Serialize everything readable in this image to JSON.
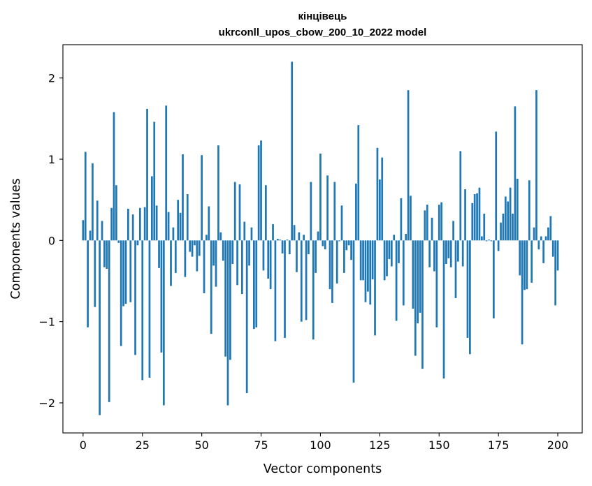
{
  "chart_data": {
    "type": "bar",
    "title": "кінцівець",
    "subtitle": "ukrconll_upos_cbow_200_10_2022 model",
    "xlabel": "Vector components",
    "ylabel": "Components values",
    "xlim": [
      -8.5,
      210.3
    ],
    "ylim": [
      -2.37,
      2.41
    ],
    "xticks": [
      0,
      25,
      50,
      75,
      100,
      125,
      150,
      175,
      200
    ],
    "yticks": [
      -2,
      -1,
      0,
      1,
      2
    ],
    "ytick_labels": [
      "−2",
      "−1",
      "0",
      "1",
      "2"
    ],
    "bar_color": "#1f77b4",
    "grid": false,
    "values": [
      0.25,
      1.09,
      -1.07,
      0.12,
      0.95,
      -0.82,
      0.49,
      -2.15,
      0.24,
      -0.33,
      -0.35,
      -1.99,
      0.4,
      1.58,
      0.68,
      -0.03,
      -1.3,
      -0.81,
      -0.78,
      0.39,
      -0.76,
      0.32,
      -1.41,
      -0.06,
      0.4,
      -1.72,
      0.41,
      1.62,
      -1.69,
      0.79,
      1.46,
      0.43,
      -0.34,
      -1.38,
      -2.03,
      1.66,
      0.35,
      -0.56,
      0.16,
      -0.4,
      0.5,
      0.34,
      1.06,
      -0.45,
      0.57,
      -0.14,
      -0.2,
      -0.06,
      -0.38,
      -0.19,
      1.05,
      -0.65,
      0.07,
      0.42,
      -1.15,
      -0.31,
      -0.57,
      1.17,
      0.1,
      -0.25,
      -1.43,
      -2.03,
      -1.47,
      -0.29,
      0.72,
      -0.55,
      0.69,
      -0.66,
      0.23,
      -1.88,
      -0.31,
      0.16,
      -1.09,
      -1.07,
      1.17,
      1.23,
      -0.37,
      0.68,
      -0.47,
      -0.6,
      0.2,
      -1.24,
      0.02,
      0.01,
      -0.16,
      -1.2,
      0.01,
      -0.17,
      2.2,
      0.19,
      -0.39,
      0.1,
      -1.0,
      0.07,
      -0.98,
      -0.17,
      0.72,
      -1.22,
      -0.4,
      0.11,
      1.07,
      -0.07,
      -0.11,
      0.8,
      -0.6,
      -0.77,
      0.72,
      -0.53,
      -0.01,
      0.43,
      -0.4,
      -0.12,
      -0.06,
      -0.24,
      -1.75,
      0.7,
      1.42,
      -0.49,
      -0.49,
      -0.76,
      -0.63,
      -0.79,
      -0.48,
      -1.17,
      1.14,
      0.75,
      1.02,
      -0.49,
      -0.44,
      -0.23,
      -0.32,
      0.07,
      -0.99,
      -0.28,
      0.52,
      -0.8,
      0.08,
      1.85,
      0.55,
      -0.84,
      -1.42,
      -1.02,
      -0.89,
      -1.58,
      0.37,
      0.44,
      -0.33,
      0.28,
      -0.38,
      -1.07,
      0.44,
      0.47,
      -1.7,
      -0.29,
      -0.22,
      -0.33,
      0.24,
      -0.71,
      -0.26,
      1.1,
      -0.32,
      0.63,
      -1.2,
      -1.4,
      0.46,
      0.57,
      0.58,
      0.65,
      0.05,
      0.33,
      -0.01,
      0.01,
      -0.01,
      -0.96,
      1.34,
      -0.13,
      0.22,
      0.33,
      0.54,
      0.48,
      0.65,
      0.33,
      1.65,
      0.76,
      -0.43,
      -1.28,
      -0.61,
      -0.6,
      0.74,
      -0.52,
      0.16,
      1.85,
      -0.11,
      0.05,
      -0.28,
      0.05,
      0.16,
      0.3,
      -0.2,
      -0.8,
      -0.37
    ]
  }
}
